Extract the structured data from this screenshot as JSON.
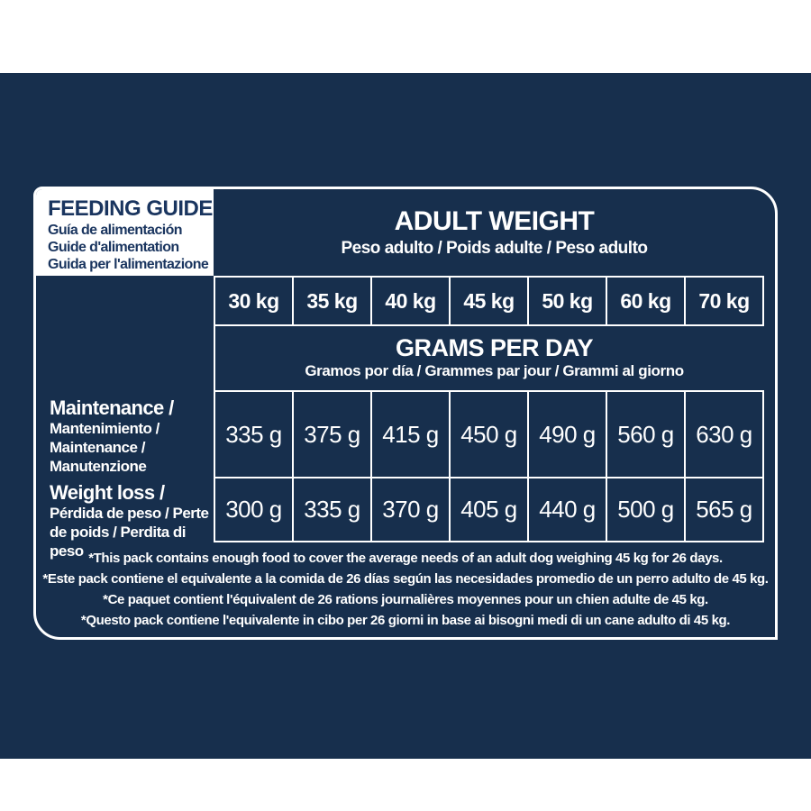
{
  "colors": {
    "navy": "#172F4D",
    "white": "#FFFFFF",
    "navy_text_on_white": "#1A355F"
  },
  "feeding_guide": {
    "title": "FEEDING GUIDE",
    "subtitles": [
      "Guía de alimentación",
      "Guide d'alimentation",
      "Guida per l'alimentazione"
    ]
  },
  "adult_weight": {
    "title": "ADULT WEIGHT",
    "subtitle": "Peso adulto / Poids adulte / Peso adulto"
  },
  "grams_per_day": {
    "title": "GRAMS PER DAY",
    "subtitle": "Gramos por día / Grammes par jour / Grammi al giorno"
  },
  "table": {
    "weights": [
      "30 kg",
      "35 kg",
      "40 kg",
      "45 kg",
      "50 kg",
      "60 kg",
      "70 kg"
    ],
    "rows": [
      {
        "label_bold": "Maintenance /",
        "label_rest": "Mantenimiento / Maintenance / Manutenzione",
        "values": [
          "335 g",
          "375 g",
          "415 g",
          "450 g",
          "490 g",
          "560 g",
          "630 g"
        ]
      },
      {
        "label_bold": "Weight loss /",
        "label_rest": "Pérdida de peso / Perte de poids / Perdita di peso",
        "values": [
          "300 g",
          "335 g",
          "370 g",
          "405 g",
          "440 g",
          "500 g",
          "565 g"
        ]
      }
    ]
  },
  "footnotes": [
    "*This pack contains enough food to cover the average needs of an adult dog weighing 45 kg for 26 days.",
    "*Este pack contiene el equivalente a la comida de 26 días según las necesidades promedio de un perro adulto de 45 kg.",
    "*Ce paquet contient l'équivalent de 26 rations journalières moyennes pour un chien adulte de 45 kg.",
    "*Questo pack contiene l'equivalente in cibo per 26 giorni in base ai bisogni medi di un cane adulto di 45 kg."
  ]
}
